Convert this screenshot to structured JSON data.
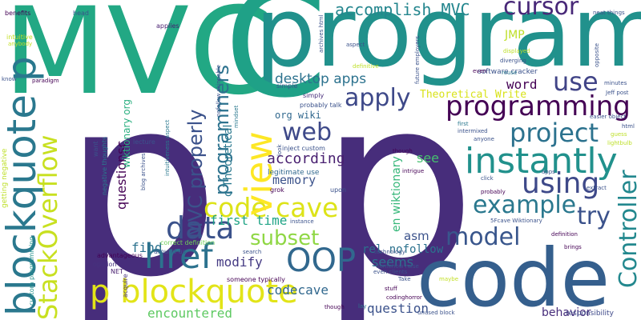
{
  "words": [
    {
      "text": "MVC",
      "color": "#22a884",
      "rotated": false
    },
    {
      "text": "program",
      "color": "#21918c",
      "rotated": false
    },
    {
      "text": "C",
      "color": "#1fa187",
      "rotated": false
    },
    {
      "text": "p",
      "color": "#472d7b",
      "rotated": false
    },
    {
      "text": "p",
      "color": "#472d7b",
      "rotated": false
    },
    {
      "text": "code",
      "color": "#355f8d",
      "rotated": false
    },
    {
      "text": "blockquote p",
      "color": "#2a788e",
      "rotated": true
    },
    {
      "text": "p blockquote",
      "color": "#e2e418",
      "rotated": false
    },
    {
      "text": "StackOverflow",
      "color": "#c8e020",
      "rotated": true
    },
    {
      "text": "code cave",
      "color": "#dde318",
      "rotated": false
    },
    {
      "text": "href",
      "color": "#2c728e",
      "rotated": false
    },
    {
      "text": "OOP",
      "color": "#31688e",
      "rotated": false
    },
    {
      "text": "data",
      "color": "#3b528b",
      "rotated": false
    },
    {
      "text": "view",
      "color": "#fde725",
      "rotated": true
    },
    {
      "text": "instantly",
      "color": "#21918c",
      "rotated": false
    },
    {
      "text": "programming",
      "color": "#440154",
      "rotated": false
    },
    {
      "text": "project",
      "color": "#2c728e",
      "rotated": false
    },
    {
      "text": "use",
      "color": "#414487",
      "rotated": false
    },
    {
      "text": "using",
      "color": "#3e4989",
      "rotated": false
    },
    {
      "text": "example",
      "color": "#2a788e",
      "rotated": false
    },
    {
      "text": "try",
      "color": "#3b528b",
      "rotated": false
    },
    {
      "text": "model",
      "color": "#39568c",
      "rotated": false
    },
    {
      "text": "Controller",
      "color": "#23888e",
      "rotated": true
    },
    {
      "text": "cursor",
      "color": "#482878",
      "rotated": false
    },
    {
      "text": "accomplish MVC",
      "color": "#24868e",
      "rotated": false
    },
    {
      "text": "apply",
      "color": "#3e4989",
      "rotated": false
    },
    {
      "text": "subset",
      "color": "#8fd744",
      "rotated": false
    },
    {
      "text": "web",
      "color": "#3e4989",
      "rotated": false
    },
    {
      "text": "MVC properly",
      "color": "#3b528b",
      "rotated": true
    },
    {
      "text": "programmers",
      "color": "#2c728e",
      "rotated": true
    },
    {
      "text": "desktop apps",
      "color": "#2c728e",
      "rotated": false
    },
    {
      "text": "according",
      "color": "#481f70",
      "rotated": false
    },
    {
      "text": "memory",
      "color": "#3b528b",
      "rotated": false
    },
    {
      "text": "first time",
      "color": "#20a486",
      "rotated": false
    },
    {
      "text": "find",
      "color": "#2c728e",
      "rotated": false
    },
    {
      "text": "modify",
      "color": "#443a83",
      "rotated": false
    },
    {
      "text": "codecave",
      "color": "#31688e",
      "rotated": false
    },
    {
      "text": "encountered",
      "color": "#5ec962",
      "rotated": false
    },
    {
      "text": "question",
      "color": "#3b528b",
      "rotated": false
    },
    {
      "text": "seems",
      "color": "#2c728e",
      "rotated": false
    },
    {
      "text": "rel nofollow",
      "color": "#2c728e",
      "rotated": false
    },
    {
      "text": "asm",
      "color": "#3b528b",
      "rotated": false
    },
    {
      "text": "behavior",
      "color": "#472d7b",
      "rotated": false
    },
    {
      "text": "see",
      "color": "#46c06f",
      "rotated": false
    },
    {
      "text": "word",
      "color": "#440154",
      "rotated": false
    },
    {
      "text": "JMP",
      "color": "#bddf26",
      "rotated": false
    },
    {
      "text": "Theoretical Write",
      "color": "#d8e219",
      "rotated": false
    },
    {
      "text": "org wiki",
      "color": "#31688e",
      "rotated": false
    },
    {
      "text": "c Theoretical",
      "color": "#2a788e",
      "rotated": true
    },
    {
      "text": "questionsc",
      "color": "#440154",
      "rotated": true
    },
    {
      "text": "en wiktionary",
      "color": "#35b779",
      "rotated": true
    },
    {
      "text": "wiktionary org",
      "color": "#29af7f",
      "rotated": true
    },
    {
      "text": "software cracker",
      "color": "#3b528b",
      "rotated": false
    },
    {
      "text": "responsibility",
      "color": "#3e4989",
      "rotated": false
    },
    {
      "text": "benefits",
      "color": "#440154",
      "rotated": false
    },
    {
      "text": "head",
      "color": "#3b528b",
      "rotated": false
    },
    {
      "text": "applies",
      "color": "#481f70",
      "rotated": false
    },
    {
      "text": "intuitive",
      "color": "#c2df23",
      "rotated": false
    },
    {
      "text": "anybody",
      "color": "#c2df23",
      "rotated": false
    },
    {
      "text": "know",
      "color": "#3b528b",
      "rotated": false
    },
    {
      "text": "paradigm",
      "color": "#440154",
      "rotated": false
    },
    {
      "text": "getting negative",
      "color": "#bddf26",
      "rotated": true
    },
    {
      "text": "custom programming",
      "color": "#21918c",
      "rotated": true
    },
    {
      "text": "lecture",
      "color": "#3b528b",
      "rotated": false
    },
    {
      "text": "want",
      "color": "#3b528b",
      "rotated": true
    },
    {
      "text": "negative thoughts",
      "color": "#2a788e",
      "rotated": true
    },
    {
      "text": "blog archives",
      "color": "#3b528b",
      "rotated": true
    },
    {
      "text": "advantageous",
      "color": "#440154",
      "rotated": false
    },
    {
      "text": "opinion",
      "color": "#46327e",
      "rotated": false
    },
    {
      "text": "NET",
      "color": "#481f70",
      "rotated": false
    },
    {
      "text": "acquire",
      "color": "#46327e",
      "rotated": true
    },
    {
      "text": "correct definition",
      "color": "#6ece58",
      "rotated": false
    },
    {
      "text": "around us",
      "color": "#39568c",
      "rotated": false
    },
    {
      "text": "someone typically",
      "color": "#440154",
      "rotated": false
    },
    {
      "text": "search",
      "color": "#3b528b",
      "rotated": false
    },
    {
      "text": "instance",
      "color": "#3b528b",
      "rotated": false
    },
    {
      "text": "upon",
      "color": "#3b528b",
      "rotated": false
    },
    {
      "text": "grok",
      "color": "#440154",
      "rotated": false
    },
    {
      "text": "legitimate use",
      "color": "#31688e",
      "rotated": false
    },
    {
      "text": "inject custom",
      "color": "#3b528b",
      "rotated": false
    },
    {
      "text": "probably talk",
      "color": "#3b528b",
      "rotated": false
    },
    {
      "text": "simply",
      "color": "#472d7b",
      "rotated": false
    },
    {
      "text": "simple",
      "color": "#3b528b",
      "rotated": false
    },
    {
      "text": "archives html",
      "color": "#3b528b",
      "rotated": true
    },
    {
      "text": "nofollow skinnable",
      "color": "#3b528b",
      "rotated": true
    },
    {
      "text": "intuitiveness aspect",
      "color": "#2a788e",
      "rotated": true
    },
    {
      "text": "look",
      "color": "#3b528b",
      "rotated": true
    },
    {
      "text": "mindset",
      "color": "#2a788e",
      "rotated": true
    },
    {
      "text": "aspect",
      "color": "#3b528b",
      "rotated": false
    },
    {
      "text": "definitive",
      "color": "#bddf26",
      "rotated": false
    },
    {
      "text": "future employers",
      "color": "#3b528b",
      "rotated": true
    },
    {
      "text": "displayed",
      "color": "#bddf26",
      "rotated": false
    },
    {
      "text": "diverging",
      "color": "#3b528b",
      "rotated": false
    },
    {
      "text": "reuse",
      "color": "#2a788e",
      "rotated": false
    },
    {
      "text": "even",
      "color": "#440154",
      "rotated": false
    },
    {
      "text": "opposite",
      "color": "#3b528b",
      "rotated": true
    },
    {
      "text": "minutes",
      "color": "#3b528b",
      "rotated": false
    },
    {
      "text": "Jeff post",
      "color": "#3b528b",
      "rotated": false
    },
    {
      "text": "easier object",
      "color": "#3b528b",
      "rotated": false
    },
    {
      "text": "html",
      "color": "#3b528b",
      "rotated": false
    },
    {
      "text": "guess",
      "color": "#bddf26",
      "rotated": false
    },
    {
      "text": "lightbulb",
      "color": "#bddf26",
      "rotated": false
    },
    {
      "text": "neat things",
      "color": "#3b528b",
      "rotated": false
    },
    {
      "text": "first",
      "color": "#2a788e",
      "rotated": false
    },
    {
      "text": "intermixed",
      "color": "#3b528b",
      "rotated": false
    },
    {
      "text": "anyone",
      "color": "#3b528b",
      "rotated": false
    },
    {
      "text": "though",
      "color": "#440154",
      "rotated": false
    },
    {
      "text": "intrigue",
      "color": "#440154",
      "rotated": false
    },
    {
      "text": "click",
      "color": "#3b528b",
      "rotated": false
    },
    {
      "text": "probably",
      "color": "#440154",
      "rotated": false
    },
    {
      "text": "apps",
      "color": "#3b528b",
      "rotated": false
    },
    {
      "text": "extract",
      "color": "#3b528b",
      "rotated": false
    },
    {
      "text": "5Fcave Wiktionary",
      "color": "#3b528b",
      "rotated": false
    },
    {
      "text": "definition",
      "color": "#440154",
      "rotated": false
    },
    {
      "text": "brings",
      "color": "#440154",
      "rotated": false
    },
    {
      "text": "somehow raise",
      "color": "#3b528b",
      "rotated": false
    },
    {
      "text": "technology",
      "color": "#3b528b",
      "rotated": false
    },
    {
      "text": "even clients",
      "color": "#3b528b",
      "rotated": false
    },
    {
      "text": "Take",
      "color": "#3b528b",
      "rotated": false
    },
    {
      "text": "maybe",
      "color": "#c2df23",
      "rotated": false
    },
    {
      "text": "stuff",
      "color": "#440154",
      "rotated": false
    },
    {
      "text": "codinghorror",
      "color": "#440154",
      "rotated": false
    },
    {
      "text": "lay",
      "color": "#2a788e",
      "rotated": false
    },
    {
      "text": "unused block",
      "color": "#3b528b",
      "rotated": false
    },
    {
      "text": "though",
      "color": "#440154",
      "rotated": false
    }
  ]
}
